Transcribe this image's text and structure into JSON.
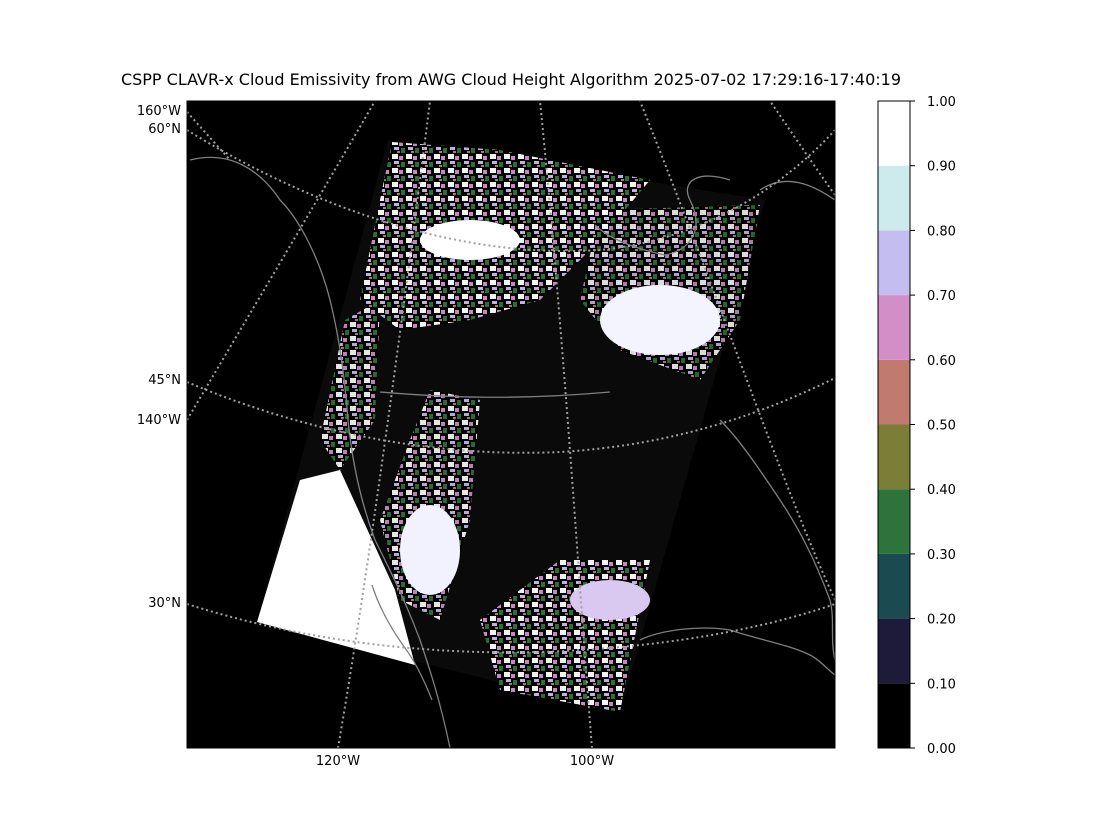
{
  "title": "CSPP CLAVR-x Cloud Emissivity from AWG Cloud Height Algorithm 2025-07-02 17:29:16-17:40:19",
  "map": {
    "projection": "lambert-conformal",
    "lat_labels": [
      "60°N",
      "45°N",
      "30°N"
    ],
    "lon_labels_left": [
      "160°W",
      "140°W"
    ],
    "lon_labels_bottom": [
      "120°W",
      "100°W"
    ],
    "background_color": "#000000",
    "coastline_color": "#7f7f7f",
    "graticule_color": "#a0a0a0"
  },
  "colorbar": {
    "ticks": [
      "0.00",
      "0.10",
      "0.20",
      "0.30",
      "0.40",
      "0.50",
      "0.60",
      "0.70",
      "0.80",
      "0.90",
      "1.00"
    ],
    "bins": [
      {
        "from": 0.0,
        "to": 0.1,
        "color": "#000000"
      },
      {
        "from": 0.1,
        "to": 0.2,
        "color": "#1e1a3a"
      },
      {
        "from": 0.2,
        "to": 0.3,
        "color": "#1b4a50"
      },
      {
        "from": 0.3,
        "to": 0.4,
        "color": "#2e723c"
      },
      {
        "from": 0.4,
        "to": 0.5,
        "color": "#7a7e36"
      },
      {
        "from": 0.5,
        "to": 0.6,
        "color": "#c07a6e"
      },
      {
        "from": 0.6,
        "to": 0.7,
        "color": "#d38ec8"
      },
      {
        "from": 0.7,
        "to": 0.8,
        "color": "#c3bdf0"
      },
      {
        "from": 0.8,
        "to": 0.9,
        "color": "#cdeaec"
      },
      {
        "from": 0.9,
        "to": 1.0,
        "color": "#ffffff"
      }
    ]
  }
}
